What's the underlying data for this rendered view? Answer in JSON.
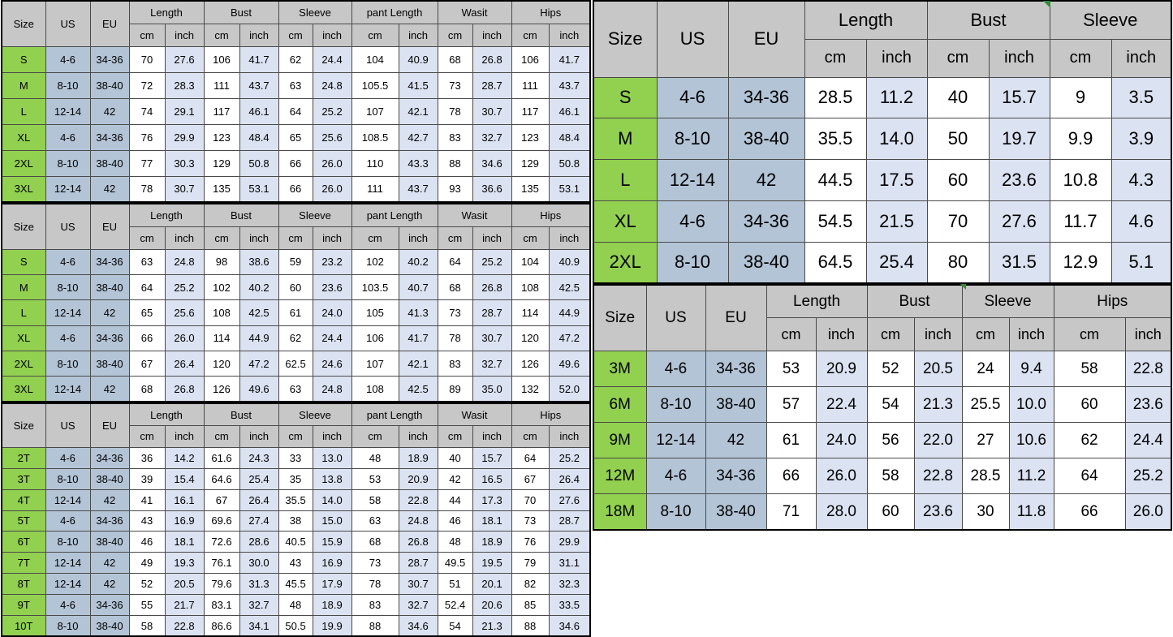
{
  "colors": {
    "size_green": "#92d050",
    "us_eu_blue": "#b3c4d6",
    "header_gray": "#c7c7c7",
    "inch_lavender": "#dbe2f1",
    "cell_white": "#ffffff",
    "comment_marker_green": "#2f8f2f"
  },
  "left_tables": [
    {
      "name": "size-chart-pants-set-1",
      "headers": {
        "size": "Size",
        "us": "US",
        "eu": "EU"
      },
      "measures": [
        "Length",
        "Bust",
        "Sleeve",
        "pant Length",
        "Wasit",
        "Hips"
      ],
      "units": [
        "cm",
        "inch"
      ],
      "rows": [
        {
          "size": "S",
          "us": "4-6",
          "eu": "34-36",
          "values": [
            "70",
            "27.6",
            "106",
            "41.7",
            "62",
            "24.4",
            "104",
            "40.9",
            "68",
            "26.8",
            "106",
            "41.7"
          ]
        },
        {
          "size": "M",
          "us": "8-10",
          "eu": "38-40",
          "values": [
            "72",
            "28.3",
            "111",
            "43.7",
            "63",
            "24.8",
            "105.5",
            "41.5",
            "73",
            "28.7",
            "111",
            "43.7"
          ]
        },
        {
          "size": "L",
          "us": "12-14",
          "eu": "42",
          "values": [
            "74",
            "29.1",
            "117",
            "46.1",
            "64",
            "25.2",
            "107",
            "42.1",
            "78",
            "30.7",
            "117",
            "46.1"
          ]
        },
        {
          "size": "XL",
          "us": "4-6",
          "eu": "34-36",
          "values": [
            "76",
            "29.9",
            "123",
            "48.4",
            "65",
            "25.6",
            "108.5",
            "42.7",
            "83",
            "32.7",
            "123",
            "48.4"
          ]
        },
        {
          "size": "2XL",
          "us": "8-10",
          "eu": "38-40",
          "values": [
            "77",
            "30.3",
            "129",
            "50.8",
            "66",
            "26.0",
            "110",
            "43.3",
            "88",
            "34.6",
            "129",
            "50.8"
          ]
        },
        {
          "size": "3XL",
          "us": "12-14",
          "eu": "42",
          "values": [
            "78",
            "30.7",
            "135",
            "53.1",
            "66",
            "26.0",
            "111",
            "43.7",
            "93",
            "36.6",
            "135",
            "53.1"
          ]
        }
      ]
    },
    {
      "name": "size-chart-pants-set-2",
      "headers": {
        "size": "Size",
        "us": "US",
        "eu": "EU"
      },
      "measures": [
        "Length",
        "Bust",
        "Sleeve",
        "pant Length",
        "Wasit",
        "Hips"
      ],
      "units": [
        "cm",
        "inch"
      ],
      "rows": [
        {
          "size": "S",
          "us": "4-6",
          "eu": "34-36",
          "values": [
            "63",
            "24.8",
            "98",
            "38.6",
            "59",
            "23.2",
            "102",
            "40.2",
            "64",
            "25.2",
            "104",
            "40.9"
          ]
        },
        {
          "size": "M",
          "us": "8-10",
          "eu": "38-40",
          "values": [
            "64",
            "25.2",
            "102",
            "40.2",
            "60",
            "23.6",
            "103.5",
            "40.7",
            "68",
            "26.8",
            "108",
            "42.5"
          ]
        },
        {
          "size": "L",
          "us": "12-14",
          "eu": "42",
          "values": [
            "65",
            "25.6",
            "108",
            "42.5",
            "61",
            "24.0",
            "105",
            "41.3",
            "73",
            "28.7",
            "114",
            "44.9"
          ]
        },
        {
          "size": "XL",
          "us": "4-6",
          "eu": "34-36",
          "values": [
            "66",
            "26.0",
            "114",
            "44.9",
            "62",
            "24.4",
            "106",
            "41.7",
            "78",
            "30.7",
            "120",
            "47.2"
          ]
        },
        {
          "size": "2XL",
          "us": "8-10",
          "eu": "38-40",
          "values": [
            "67",
            "26.4",
            "120",
            "47.2",
            "62.5",
            "24.6",
            "107",
            "42.1",
            "83",
            "32.7",
            "126",
            "49.6"
          ]
        },
        {
          "size": "3XL",
          "us": "12-14",
          "eu": "42",
          "values": [
            "68",
            "26.8",
            "126",
            "49.6",
            "63",
            "24.8",
            "108",
            "42.5",
            "89",
            "35.0",
            "132",
            "52.0"
          ]
        }
      ]
    },
    {
      "name": "size-chart-toddler-pants-set",
      "headers": {
        "size": "Size",
        "us": "US",
        "eu": "EU"
      },
      "measures": [
        "Length",
        "Bust",
        "Sleeve",
        "pant Length",
        "Wasit",
        "Hips"
      ],
      "units": [
        "cm",
        "inch"
      ],
      "rows": [
        {
          "size": "2T",
          "us": "4-6",
          "eu": "34-36",
          "values": [
            "36",
            "14.2",
            "61.6",
            "24.3",
            "33",
            "13.0",
            "48",
            "18.9",
            "40",
            "15.7",
            "64",
            "25.2"
          ]
        },
        {
          "size": "3T",
          "us": "8-10",
          "eu": "38-40",
          "values": [
            "39",
            "15.4",
            "64.6",
            "25.4",
            "35",
            "13.8",
            "53",
            "20.9",
            "42",
            "16.5",
            "67",
            "26.4"
          ]
        },
        {
          "size": "4T",
          "us": "12-14",
          "eu": "42",
          "values": [
            "41",
            "16.1",
            "67",
            "26.4",
            "35.5",
            "14.0",
            "58",
            "22.8",
            "44",
            "17.3",
            "70",
            "27.6"
          ]
        },
        {
          "size": "5T",
          "us": "4-6",
          "eu": "34-36",
          "values": [
            "43",
            "16.9",
            "69.6",
            "27.4",
            "38",
            "15.0",
            "63",
            "24.8",
            "46",
            "18.1",
            "73",
            "28.7"
          ]
        },
        {
          "size": "6T",
          "us": "8-10",
          "eu": "38-40",
          "values": [
            "46",
            "18.1",
            "72.6",
            "28.6",
            "40.5",
            "15.9",
            "68",
            "26.8",
            "48",
            "18.9",
            "76",
            "29.9"
          ]
        },
        {
          "size": "7T",
          "us": "12-14",
          "eu": "42",
          "values": [
            "49",
            "19.3",
            "76.1",
            "30.0",
            "43",
            "16.9",
            "73",
            "28.7",
            "49.5",
            "19.5",
            "79",
            "31.1"
          ]
        },
        {
          "size": "8T",
          "us": "12-14",
          "eu": "42",
          "values": [
            "52",
            "20.5",
            "79.6",
            "31.3",
            "45.5",
            "17.9",
            "78",
            "30.7",
            "51",
            "20.1",
            "82",
            "32.3"
          ]
        },
        {
          "size": "9T",
          "us": "4-6",
          "eu": "34-36",
          "values": [
            "55",
            "21.7",
            "83.1",
            "32.7",
            "48",
            "18.9",
            "83",
            "32.7",
            "52.4",
            "20.6",
            "85",
            "33.5"
          ]
        },
        {
          "size": "10T",
          "us": "8-10",
          "eu": "38-40",
          "values": [
            "58",
            "22.8",
            "86.6",
            "34.1",
            "50.5",
            "19.9",
            "88",
            "34.6",
            "54",
            "21.3",
            "88",
            "34.6"
          ]
        }
      ]
    }
  ],
  "right_tables": [
    {
      "name": "size-chart-top-adult",
      "headers": {
        "size": "Size",
        "us": "US",
        "eu": "EU"
      },
      "measures": [
        "Length",
        "Bust",
        "Sleeve"
      ],
      "units": [
        "cm",
        "inch"
      ],
      "rows": [
        {
          "size": "S",
          "us": "4-6",
          "eu": "34-36",
          "values": [
            "28.5",
            "11.2",
            "40",
            "15.7",
            "9",
            "3.5"
          ]
        },
        {
          "size": "M",
          "us": "8-10",
          "eu": "38-40",
          "values": [
            "35.5",
            "14.0",
            "50",
            "19.7",
            "9.9",
            "3.9"
          ]
        },
        {
          "size": "L",
          "us": "12-14",
          "eu": "42",
          "values": [
            "44.5",
            "17.5",
            "60",
            "23.6",
            "10.8",
            "4.3"
          ]
        },
        {
          "size": "XL",
          "us": "4-6",
          "eu": "34-36",
          "values": [
            "54.5",
            "21.5",
            "70",
            "27.6",
            "11.7",
            "4.6"
          ]
        },
        {
          "size": "2XL",
          "us": "8-10",
          "eu": "38-40",
          "values": [
            "64.5",
            "25.4",
            "80",
            "31.5",
            "12.9",
            "5.1"
          ]
        }
      ]
    },
    {
      "name": "size-chart-baby-months",
      "headers": {
        "size": "Size",
        "us": "US",
        "eu": "EU"
      },
      "measures": [
        "Length",
        "Bust",
        "Sleeve",
        "Hips"
      ],
      "units": [
        "cm",
        "inch"
      ],
      "rows": [
        {
          "size": "3M",
          "us": "4-6",
          "eu": "34-36",
          "values": [
            "53",
            "20.9",
            "52",
            "20.5",
            "24",
            "9.4",
            "58",
            "22.8"
          ]
        },
        {
          "size": "6M",
          "us": "8-10",
          "eu": "38-40",
          "values": [
            "57",
            "22.4",
            "54",
            "21.3",
            "25.5",
            "10.0",
            "60",
            "23.6"
          ]
        },
        {
          "size": "9M",
          "us": "12-14",
          "eu": "42",
          "values": [
            "61",
            "24.0",
            "56",
            "22.0",
            "27",
            "10.6",
            "62",
            "24.4"
          ]
        },
        {
          "size": "12M",
          "us": "4-6",
          "eu": "34-36",
          "values": [
            "66",
            "26.0",
            "58",
            "22.8",
            "28.5",
            "11.2",
            "64",
            "25.2"
          ]
        },
        {
          "size": "18M",
          "us": "8-10",
          "eu": "38-40",
          "values": [
            "71",
            "28.0",
            "60",
            "23.6",
            "30",
            "11.8",
            "66",
            "26.0"
          ]
        }
      ]
    }
  ]
}
